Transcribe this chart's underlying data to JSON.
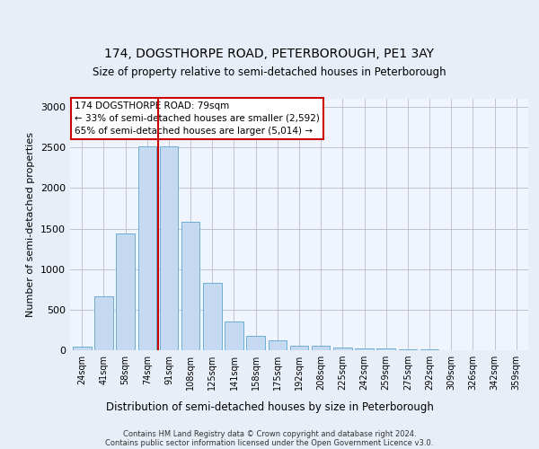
{
  "title1": "174, DOGSTHORPE ROAD, PETERBOROUGH, PE1 3AY",
  "title2": "Size of property relative to semi-detached houses in Peterborough",
  "xlabel": "Distribution of semi-detached houses by size in Peterborough",
  "ylabel": "Number of semi-detached properties",
  "categories": [
    "24sqm",
    "41sqm",
    "58sqm",
    "74sqm",
    "91sqm",
    "108sqm",
    "125sqm",
    "141sqm",
    "158sqm",
    "175sqm",
    "192sqm",
    "208sqm",
    "225sqm",
    "242sqm",
    "259sqm",
    "275sqm",
    "292sqm",
    "309sqm",
    "326sqm",
    "342sqm",
    "359sqm"
  ],
  "values": [
    40,
    660,
    1440,
    2510,
    2510,
    1580,
    830,
    350,
    175,
    120,
    60,
    55,
    35,
    25,
    20,
    15,
    10,
    5,
    5,
    5,
    5
  ],
  "bar_color": "#c5d9f0",
  "bar_edge_color": "#6baed6",
  "annotation_text": "174 DOGSTHORPE ROAD: 79sqm\n← 33% of semi-detached houses are smaller (2,592)\n65% of semi-detached houses are larger (5,014) →",
  "annotation_box_color": "#ffffff",
  "annotation_border_color": "#cc0000",
  "red_line_color": "#cc0000",
  "ylim": [
    0,
    3100
  ],
  "yticks": [
    0,
    500,
    1000,
    1500,
    2000,
    2500,
    3000
  ],
  "footer1": "Contains HM Land Registry data © Crown copyright and database right 2024.",
  "footer2": "Contains public sector information licensed under the Open Government Licence v3.0.",
  "bg_color": "#e8eef8",
  "plot_bg_color": "#f0f4fc"
}
